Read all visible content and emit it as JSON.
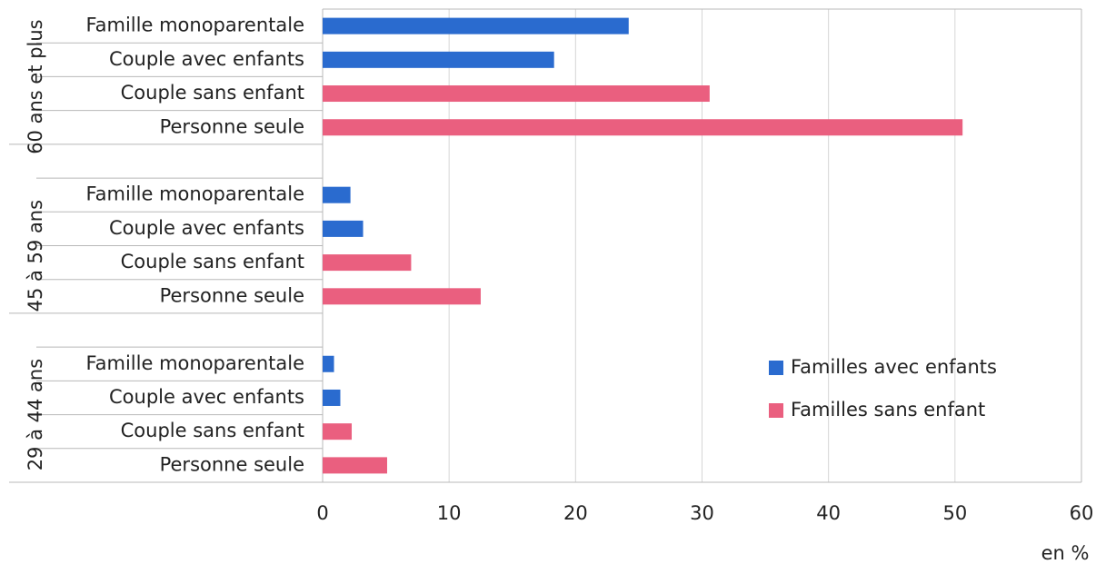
{
  "chart_data": {
    "type": "bar",
    "orientation": "horizontal",
    "x_label": "en %",
    "xlim": [
      0,
      60
    ],
    "xticks": [
      0,
      10,
      20,
      30,
      40,
      50,
      60
    ],
    "grid": true,
    "legend_position": "right",
    "series": [
      {
        "name": "Familles avec enfants",
        "color": "#2a6bcf"
      },
      {
        "name": "Familles sans enfant",
        "color": "#ea5f7f"
      }
    ],
    "groups": [
      {
        "name": "60 ans et plus",
        "categories": [
          "Famille monoparentale",
          "Couple avec enfants",
          "Couple sans enfant",
          "Personne seule"
        ],
        "values": [
          [
            24.2,
            18.3,
            null,
            null
          ],
          [
            null,
            null,
            30.6,
            50.6
          ]
        ]
      },
      {
        "name": "45 à 59 ans",
        "categories": [
          "Famille monoparentale",
          "Couple avec enfants",
          "Couple sans enfant",
          "Personne seule"
        ],
        "values": [
          [
            2.2,
            3.2,
            null,
            null
          ],
          [
            null,
            null,
            7.0,
            12.5
          ]
        ]
      },
      {
        "name": "29 à 44 ans",
        "categories": [
          "Famille monoparentale",
          "Couple avec enfants",
          "Couple sans enfant",
          "Personne seule"
        ],
        "values": [
          [
            0.9,
            1.4,
            null,
            null
          ],
          [
            null,
            null,
            2.3,
            5.1
          ]
        ]
      }
    ]
  }
}
